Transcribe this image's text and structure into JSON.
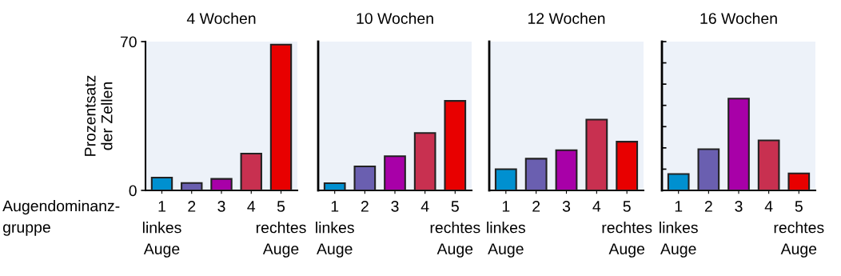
{
  "chart_data": [
    {
      "type": "bar",
      "title": "4 Wochen",
      "ylabel": "Prozentsatz\nder Zellen",
      "categories": [
        "1\nlinkes\nAuge",
        "2",
        "3",
        "4",
        "5\nrechtes\nAuge"
      ],
      "values": [
        6,
        3.5,
        5.4,
        17.3,
        68.6
      ],
      "colors": [
        "#0090d0",
        "#6a5fb0",
        "#a800a8",
        "#c83050",
        "#e80000"
      ],
      "ylim": [
        0,
        70
      ],
      "yticks": [
        0,
        70
      ],
      "grid": false,
      "annotations": [
        "Augendominanz-\ngruppe"
      ]
    },
    {
      "type": "bar",
      "title": "10 Wochen",
      "categories": [
        "1\nlinkes\nAuge",
        "2",
        "3",
        "4",
        "5\nrechtes\nAuge"
      ],
      "values": [
        3.4,
        11.3,
        16.1,
        27,
        42.1
      ],
      "colors": [
        "#0090d0",
        "#6a5fb0",
        "#a800a8",
        "#c83050",
        "#e80000"
      ],
      "ylim": [
        0,
        70
      ],
      "tick_labels": "x",
      "grid": false
    },
    {
      "type": "bar",
      "title": "12 Wochen",
      "categories": [
        "1\nlinkes\nAuge",
        "2",
        "3",
        "4",
        "5\nrechtes\nAuge"
      ],
      "values": [
        10,
        14.9,
        18.9,
        33.3,
        22.9
      ],
      "colors": [
        "#0090d0",
        "#6a5fb0",
        "#a800a8",
        "#c83050",
        "#e80000"
      ],
      "ylim": [
        0,
        70
      ],
      "tick_labels": "x",
      "grid": false
    },
    {
      "type": "bar",
      "title": "16 Wochen",
      "categories": [
        "1\nlinkes\nAuge",
        "2",
        "3",
        "4",
        "5\nrechtes\nAuge"
      ],
      "values": [
        7.7,
        19.4,
        43.2,
        23.5,
        8
      ],
      "colors": [
        "#0090d0",
        "#6a5fb0",
        "#a800a8",
        "#c83050",
        "#e80000"
      ],
      "ylim": [
        0,
        70
      ],
      "yticks": [
        {
          "value": 0,
          "label": null
        },
        {
          "value": 10,
          "label": null
        },
        {
          "value": 20,
          "label": null
        },
        {
          "value": 30,
          "label": null
        },
        {
          "value": 40,
          "label": null
        },
        {
          "value": 50,
          "label": null
        },
        {
          "value": 60,
          "label": null
        },
        {
          "value": 70,
          "label": null
        }
      ],
      "tick_labels": "x",
      "grid": false
    }
  ]
}
